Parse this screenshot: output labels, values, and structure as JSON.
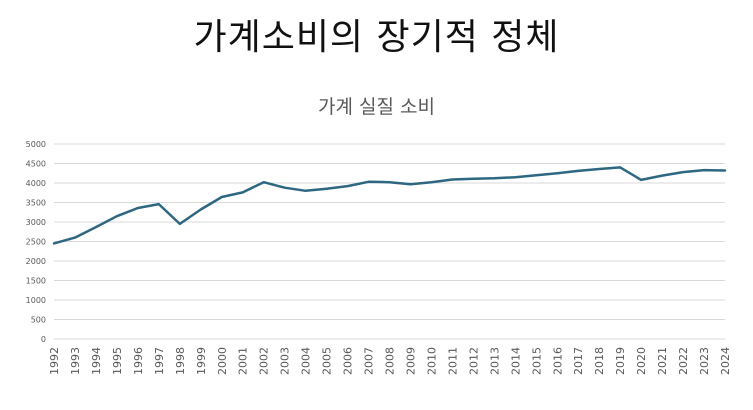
{
  "page": {
    "title": "가계소비의 장기적 정체"
  },
  "chart_data": {
    "type": "line",
    "title": "가계 실질 소비",
    "xlabel": "",
    "ylabel": "",
    "ylim": [
      0,
      5000
    ],
    "yticks": [
      0,
      500,
      1000,
      1500,
      2000,
      2500,
      3000,
      3500,
      4000,
      4500,
      5000
    ],
    "grid": true,
    "legend": "none",
    "line_color": "#2e6782",
    "x": [
      "1992",
      "1993",
      "1994",
      "1995",
      "1996",
      "1997",
      "1998",
      "1999",
      "2000",
      "2001",
      "2002",
      "2003",
      "2004",
      "2005",
      "2006",
      "2007",
      "2008",
      "2009",
      "2010",
      "2011",
      "2012",
      "2013",
      "2014",
      "2015",
      "2016",
      "2017",
      "2018",
      "2019",
      "2020",
      "2021",
      "2022",
      "2023",
      "2024"
    ],
    "series": [
      {
        "values": [
          2450,
          2600,
          2870,
          3150,
          3360,
          3460,
          2950,
          3320,
          3640,
          3760,
          4020,
          3880,
          3800,
          3850,
          3920,
          4030,
          4020,
          3970,
          4020,
          4090,
          4110,
          4120,
          4150,
          4200,
          4250,
          4310,
          4360,
          4400,
          4080,
          4190,
          4280,
          4330,
          4320
        ]
      }
    ]
  }
}
